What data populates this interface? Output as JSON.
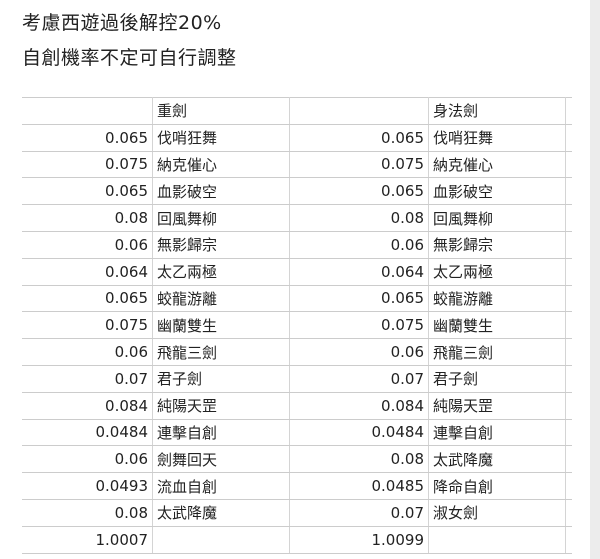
{
  "notes": [
    "考慮西遊過後解控20%",
    "自創機率不定可自行調整"
  ],
  "table": {
    "headers": [
      "",
      "重劍",
      "",
      "身法劍"
    ],
    "rows": [
      [
        "0.065",
        "伐哨狂舞",
        "0.065",
        "伐哨狂舞"
      ],
      [
        "0.075",
        "納克催心",
        "0.075",
        "納克催心"
      ],
      [
        "0.065",
        "血影破空",
        "0.065",
        "血影破空"
      ],
      [
        "0.08",
        "回風舞柳",
        "0.08",
        "回風舞柳"
      ],
      [
        "0.06",
        "無影歸宗",
        "0.06",
        "無影歸宗"
      ],
      [
        "0.064",
        "太乙兩極",
        "0.064",
        "太乙兩極"
      ],
      [
        "0.065",
        "蛟龍游離",
        "0.065",
        "蛟龍游離"
      ],
      [
        "0.075",
        "幽蘭雙生",
        "0.075",
        "幽蘭雙生"
      ],
      [
        "0.06",
        "飛龍三劍",
        "0.06",
        "飛龍三劍"
      ],
      [
        "0.07",
        "君子劍",
        "0.07",
        "君子劍"
      ],
      [
        "0.084",
        "純陽天罡",
        "0.084",
        "純陽天罡"
      ],
      [
        "0.0484",
        "連擊自創",
        "0.0484",
        "連擊自創"
      ],
      [
        "0.06",
        "劍舞回天",
        "0.08",
        "太武降魔"
      ],
      [
        "0.0493",
        "流血自創",
        "0.0485",
        "降命自創"
      ],
      [
        "0.08",
        "太武降魔",
        "0.07",
        "淑女劍"
      ]
    ],
    "totals": [
      "1.0007",
      "",
      "1.0099",
      ""
    ]
  }
}
